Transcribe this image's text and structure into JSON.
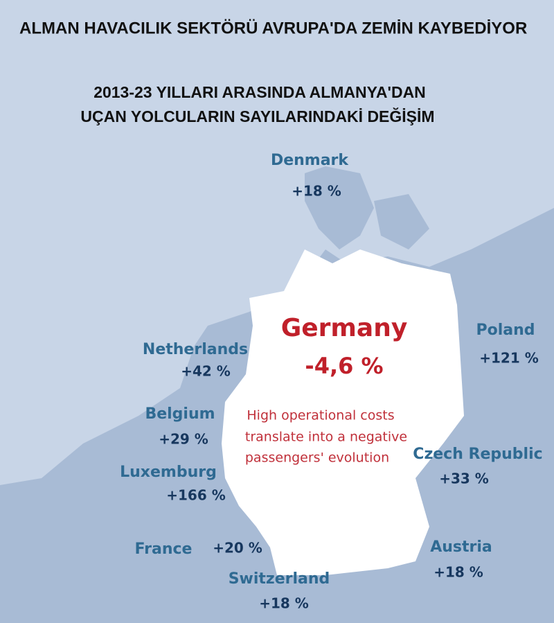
{
  "title": "ALMAN HAVACILIK SEKTÖRÜ AVRUPA'DA ZEMİN KAYBEDİYOR",
  "subtitle_lines": [
    "2013-23 YILLARI ARASINDA ALMANYA'DAN",
    "UÇAN YOLCULARIN SAYILARINDAKİ DEĞİŞİM"
  ],
  "germany": {
    "name": "Germany",
    "change": "-4,6 %",
    "note_lines": [
      "High operational costs",
      "translate into a negative",
      "passengers' evolution"
    ]
  },
  "countries": [
    {
      "name": "Denmark",
      "change": "+18 %"
    },
    {
      "name": "Netherlands",
      "change": "+42 %"
    },
    {
      "name": "Belgium",
      "change": "+29 %"
    },
    {
      "name": "Luxemburg",
      "change": "+166 %"
    },
    {
      "name": "France",
      "change": "+20 %"
    },
    {
      "name": "Switzerland",
      "change": "+18 %"
    },
    {
      "name": "Poland",
      "change": "+121 %"
    },
    {
      "name": "Czech Republic",
      "change": "+33 %"
    },
    {
      "name": "Austria",
      "change": "+18 %"
    }
  ]
}
